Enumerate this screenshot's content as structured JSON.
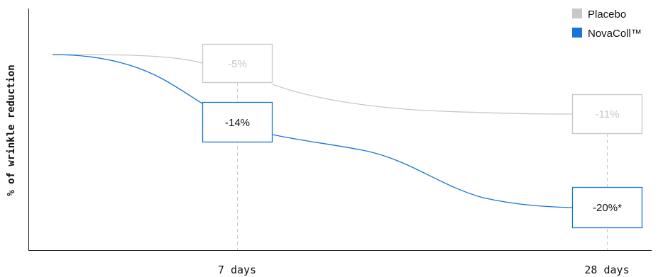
{
  "chart_data": {
    "type": "line",
    "ylabel": "% of wrinkle reduction",
    "categories": [
      "7 days",
      "28 days"
    ],
    "legend_position": "top-right",
    "grid": false,
    "series": [
      {
        "name": "Placebo",
        "color": "#c8c8c8",
        "values": [
          -5,
          -11
        ],
        "labels": [
          "-5%",
          "-11%"
        ]
      },
      {
        "name": "NovaColl™",
        "color": "#1874d6",
        "values": [
          -14,
          -20
        ],
        "labels": [
          "-14%",
          "-20%*"
        ]
      }
    ]
  }
}
